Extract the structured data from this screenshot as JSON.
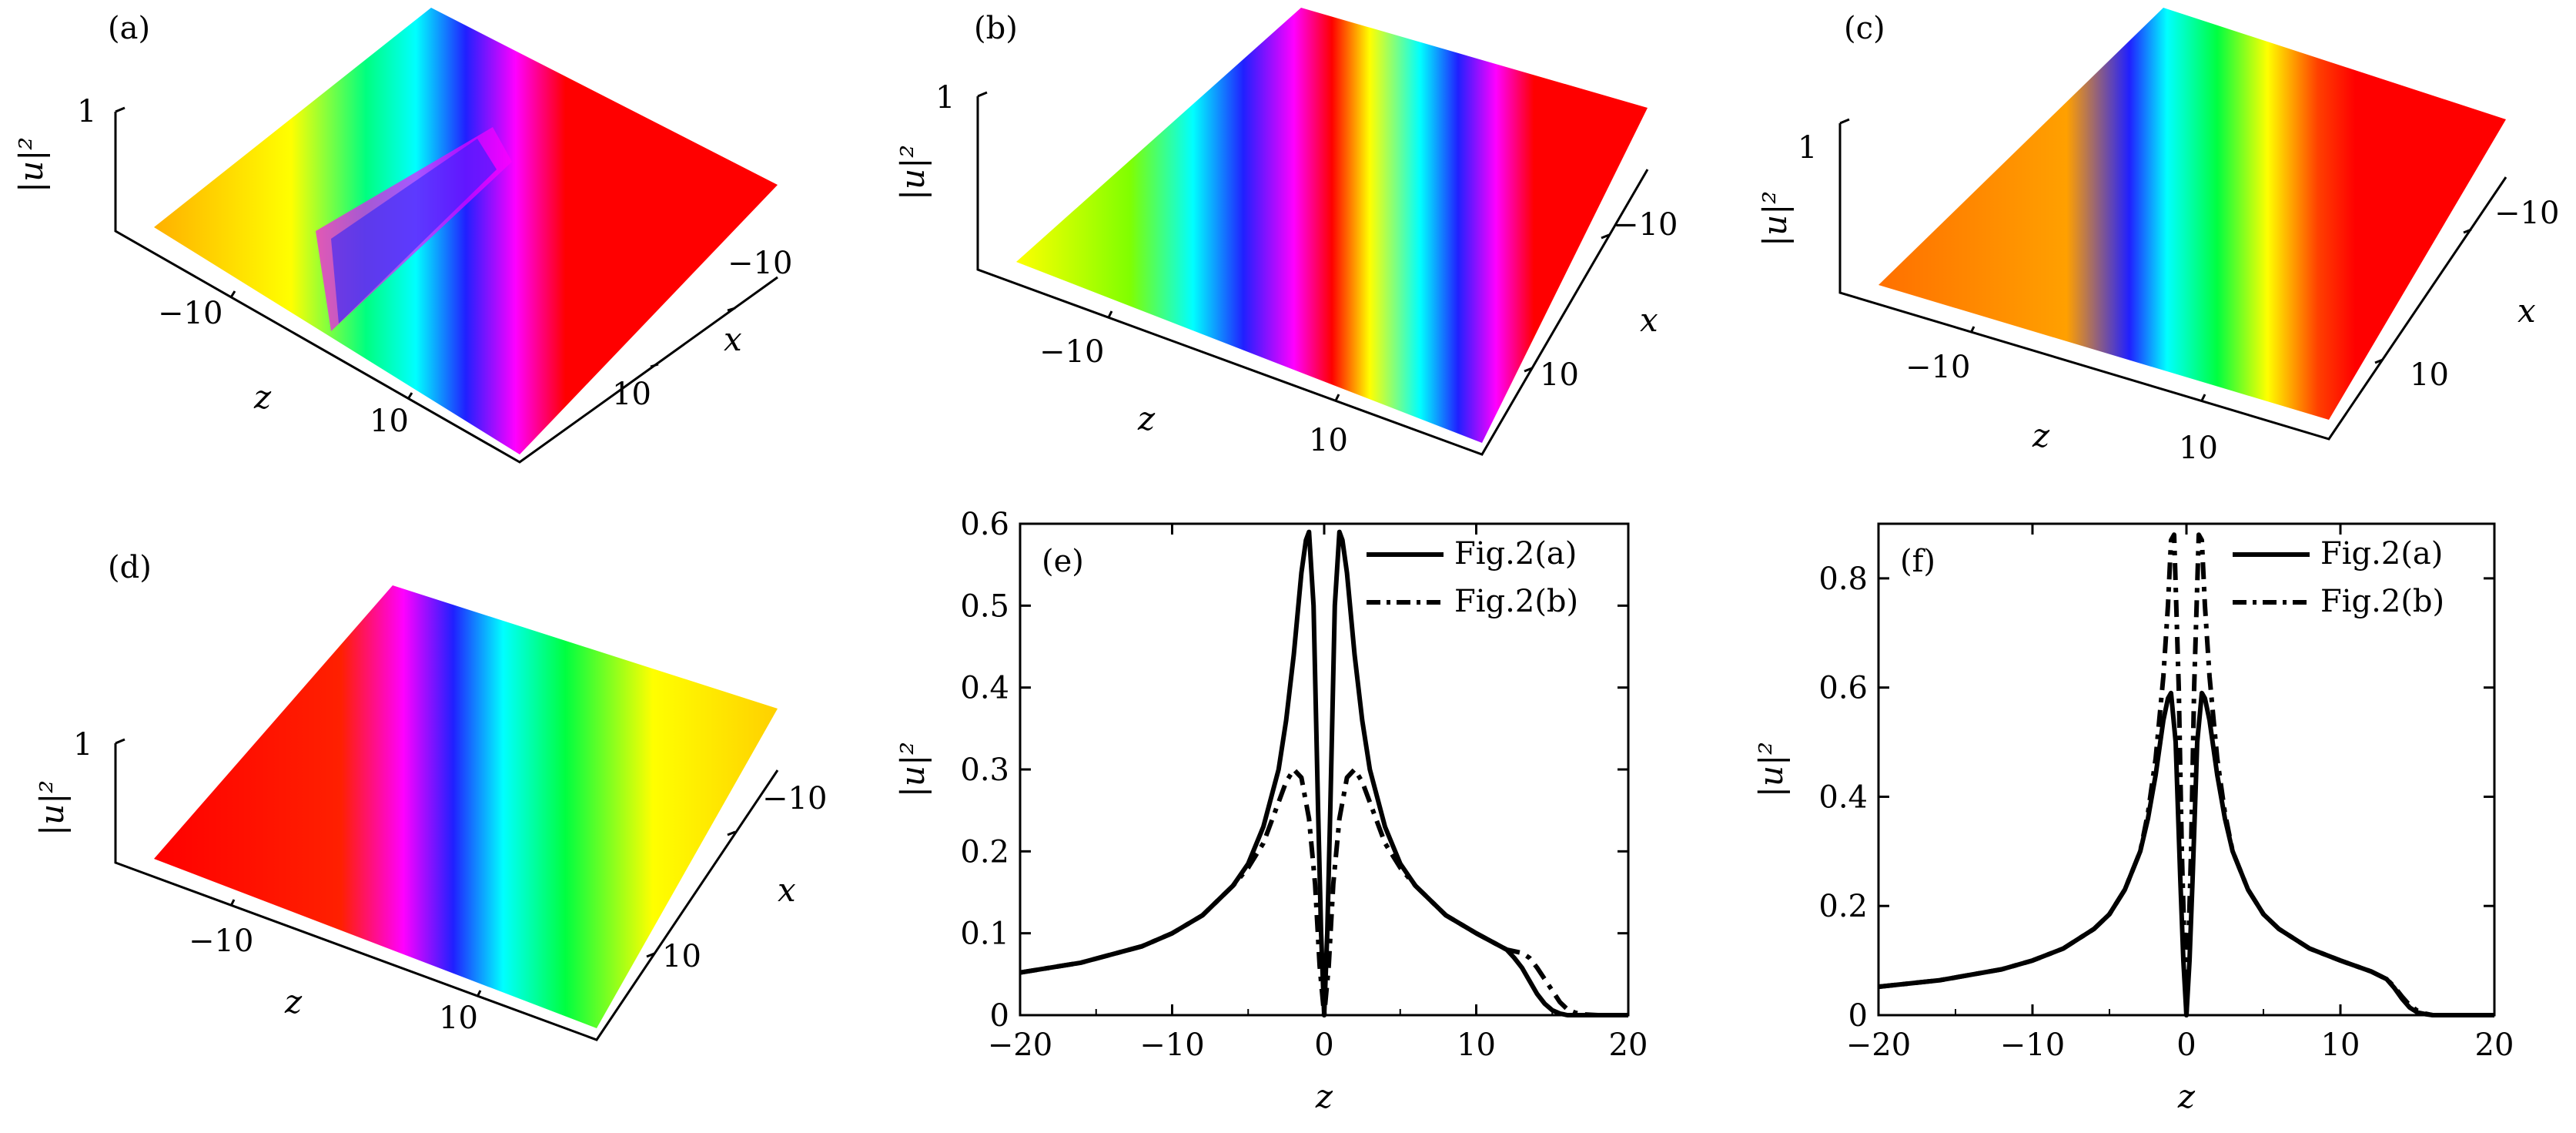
{
  "colors": {
    "red": "#ff0000",
    "orange": "#ff8a00",
    "yellow": "#ffff00",
    "green": "#00ff40",
    "cyan": "#00ffff",
    "blue": "#2020ff",
    "magenta": "#ff00ff",
    "axis": "#000000"
  },
  "surface_panels": [
    {
      "label": "(a)",
      "zlabel": "|u|²",
      "ztick": "1",
      "zaxis": "z",
      "xaxis": "x",
      "z_ticks": [
        "−10",
        "10"
      ],
      "x_ticks": [
        "−10",
        "10"
      ]
    },
    {
      "label": "(b)",
      "zlabel": "|u|²",
      "ztick": "1",
      "zaxis": "z",
      "xaxis": "x",
      "z_ticks": [
        "−10",
        "10"
      ],
      "x_ticks": [
        "−10",
        "10"
      ]
    },
    {
      "label": "(c)",
      "zlabel": "|u|²",
      "ztick": "1",
      "zaxis": "z",
      "xaxis": "x",
      "z_ticks": [
        "−10",
        "10"
      ],
      "x_ticks": [
        "−10",
        "10"
      ]
    },
    {
      "label": "(d)",
      "zlabel": "|u|²",
      "ztick": "1",
      "zaxis": "z",
      "xaxis": "x",
      "z_ticks": [
        "−10",
        "10"
      ],
      "x_ticks": [
        "−10",
        "10"
      ]
    }
  ],
  "chart_data": [
    {
      "panel": "(e)",
      "type": "line",
      "xlabel": "z",
      "ylabel": "|u|²",
      "xlim": [
        -20,
        20
      ],
      "ylim": [
        0,
        0.6
      ],
      "xticks": [
        -20,
        -10,
        0,
        10,
        20
      ],
      "xtick_labels": [
        "−20",
        "−10",
        "0",
        "10",
        "20"
      ],
      "yticks": [
        0,
        0.1,
        0.2,
        0.3,
        0.4,
        0.5,
        0.6
      ],
      "ytick_labels": [
        "0",
        "0.1",
        "0.2",
        "0.3",
        "0.4",
        "0.5",
        "0.6"
      ],
      "series": [
        {
          "name": "Fig.2(a)",
          "style": "solid",
          "x": [
            -20,
            -16,
            -12,
            -10,
            -8,
            -6,
            -5,
            -4,
            -3,
            -2.5,
            -2,
            -1.5,
            -1.2,
            -1,
            -0.7,
            -0.4,
            -0.2,
            0,
            0.2,
            0.4,
            0.7,
            1,
            1.2,
            1.5,
            2,
            2.5,
            3,
            4,
            5,
            6,
            8,
            10,
            11,
            12,
            12.5,
            13,
            13.5,
            14,
            14.5,
            15,
            15.5,
            16,
            17,
            20
          ],
          "y": [
            0.052,
            0.064,
            0.084,
            0.1,
            0.122,
            0.158,
            0.185,
            0.23,
            0.3,
            0.36,
            0.44,
            0.54,
            0.58,
            0.59,
            0.5,
            0.25,
            0.1,
            0,
            0.1,
            0.25,
            0.5,
            0.59,
            0.58,
            0.54,
            0.44,
            0.36,
            0.3,
            0.23,
            0.185,
            0.158,
            0.122,
            0.1,
            0.09,
            0.08,
            0.07,
            0.058,
            0.042,
            0.026,
            0.014,
            0.006,
            0.002,
            0,
            0,
            0
          ]
        },
        {
          "name": "Fig.2(b)",
          "style": "dashed",
          "x": [
            -20,
            -16,
            -12,
            -10,
            -8,
            -6,
            -5,
            -4,
            -3,
            -2.5,
            -2,
            -1.5,
            -1,
            -0.6,
            -0.3,
            0,
            0.3,
            0.6,
            1,
            1.5,
            2,
            2.5,
            3,
            4,
            5,
            6,
            8,
            10,
            11,
            12,
            13,
            13.5,
            14,
            14.5,
            15,
            15.5,
            16,
            16.5,
            17,
            18,
            20
          ],
          "y": [
            0.052,
            0.064,
            0.084,
            0.1,
            0.122,
            0.158,
            0.18,
            0.21,
            0.26,
            0.285,
            0.3,
            0.29,
            0.24,
            0.16,
            0.06,
            0,
            0.06,
            0.16,
            0.24,
            0.29,
            0.3,
            0.285,
            0.26,
            0.21,
            0.18,
            0.158,
            0.122,
            0.1,
            0.09,
            0.08,
            0.076,
            0.07,
            0.058,
            0.044,
            0.03,
            0.016,
            0.007,
            0.003,
            0.001,
            0,
            0
          ]
        }
      ],
      "legend": [
        "Fig.2(a)",
        "Fig.2(b)"
      ],
      "legend_position": "top-right"
    },
    {
      "panel": "(f)",
      "type": "line",
      "xlabel": "z",
      "ylabel": "|u|²",
      "xlim": [
        -20,
        20
      ],
      "ylim": [
        0,
        0.9
      ],
      "xticks": [
        -20,
        -10,
        0,
        10,
        20
      ],
      "xtick_labels": [
        "−20",
        "−10",
        "0",
        "10",
        "20"
      ],
      "yticks": [
        0,
        0.2,
        0.4,
        0.6,
        0.8
      ],
      "ytick_labels": [
        "0",
        "0.2",
        "0.4",
        "0.6",
        "0.8"
      ],
      "series": [
        {
          "name": "Fig.2(a)",
          "style": "solid",
          "x": [
            -20,
            -16,
            -12,
            -10,
            -8,
            -6,
            -5,
            -4,
            -3,
            -2.5,
            -2,
            -1.5,
            -1.2,
            -1,
            -0.7,
            -0.4,
            -0.2,
            0,
            0.2,
            0.4,
            0.7,
            1,
            1.2,
            1.5,
            2,
            2.5,
            3,
            4,
            5,
            6,
            8,
            10,
            11,
            12,
            13,
            13.5,
            14,
            14.5,
            15,
            15.5,
            16,
            17,
            20
          ],
          "y": [
            0.052,
            0.064,
            0.084,
            0.1,
            0.122,
            0.158,
            0.185,
            0.23,
            0.3,
            0.36,
            0.44,
            0.54,
            0.58,
            0.59,
            0.5,
            0.25,
            0.1,
            0,
            0.1,
            0.25,
            0.5,
            0.59,
            0.58,
            0.54,
            0.44,
            0.36,
            0.3,
            0.23,
            0.185,
            0.158,
            0.122,
            0.1,
            0.09,
            0.08,
            0.066,
            0.05,
            0.03,
            0.014,
            0.005,
            0.002,
            0,
            0,
            0
          ]
        },
        {
          "name": "Fig.2(b)",
          "style": "dashed",
          "x": [
            -20,
            -16,
            -12,
            -10,
            -8,
            -6,
            -5,
            -4,
            -3,
            -2.5,
            -2,
            -1.5,
            -1.2,
            -1,
            -0.8,
            -0.5,
            -0.3,
            0,
            0.3,
            0.5,
            0.8,
            1,
            1.2,
            1.5,
            2,
            2.5,
            3,
            4,
            5,
            6,
            8,
            10,
            11,
            12,
            13,
            13.5,
            14,
            14.5,
            15,
            15.5,
            16,
            17,
            20
          ],
          "y": [
            0.052,
            0.064,
            0.084,
            0.1,
            0.122,
            0.158,
            0.185,
            0.23,
            0.3,
            0.37,
            0.47,
            0.62,
            0.75,
            0.87,
            0.88,
            0.6,
            0.3,
            0,
            0.3,
            0.6,
            0.88,
            0.87,
            0.75,
            0.62,
            0.47,
            0.37,
            0.3,
            0.23,
            0.185,
            0.158,
            0.122,
            0.1,
            0.09,
            0.08,
            0.066,
            0.052,
            0.034,
            0.018,
            0.008,
            0.003,
            0,
            0,
            0
          ]
        }
      ],
      "legend": [
        "Fig.2(a)",
        "Fig.2(b)"
      ],
      "legend_position": "top-right"
    }
  ]
}
